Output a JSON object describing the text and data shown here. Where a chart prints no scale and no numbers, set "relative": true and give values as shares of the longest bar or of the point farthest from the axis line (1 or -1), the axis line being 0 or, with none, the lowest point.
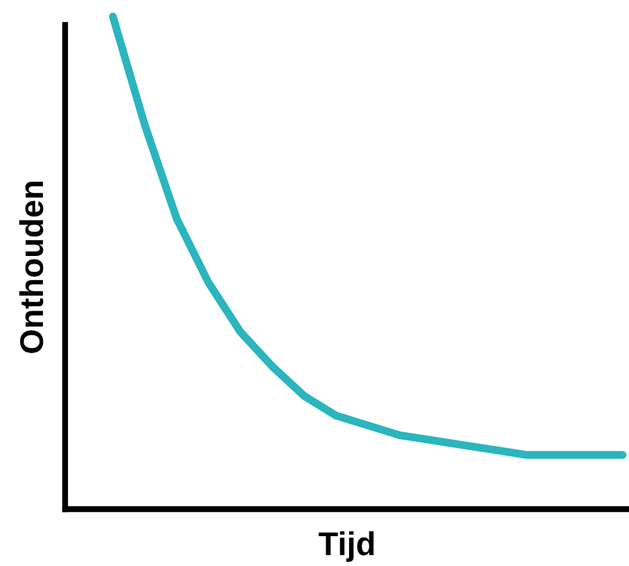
{
  "chart_data": {
    "type": "line",
    "relative": true,
    "xlabel": "Tijd",
    "ylabel": "Onthouden",
    "categories": [
      null,
      null,
      null,
      null,
      null,
      null,
      null,
      null,
      null,
      null,
      null,
      null,
      null,
      null,
      null,
      null,
      null
    ],
    "series": [
      {
        "color": "#2bb5bd",
        "values": [
          1.0,
          0.78,
          0.59,
          0.46,
          0.36,
          0.29,
          0.23,
          0.19,
          0.17,
          0.15,
          0.14,
          0.13,
          0.12,
          0.11,
          0.11,
          0.11,
          0.11
        ]
      }
    ],
    "grid": false,
    "legend": false,
    "marker": "none",
    "line_style": "solid"
  }
}
